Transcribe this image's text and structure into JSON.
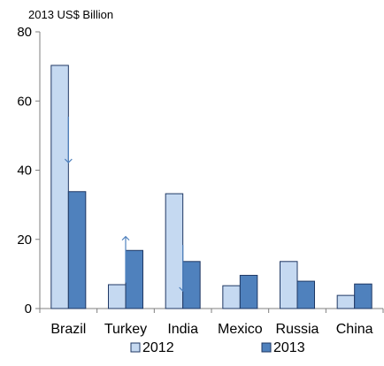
{
  "chart_data": {
    "type": "bar",
    "unit_label": "2013 US$ Billion",
    "categories": [
      "Brazil",
      "Turkey",
      "India",
      "Mexico",
      "Russia",
      "China"
    ],
    "series": [
      {
        "name": "2012",
        "values": [
          70.3,
          6.9,
          33.2,
          6.6,
          13.6,
          3.8
        ],
        "color": "#c5d9f1"
      },
      {
        "name": "2013",
        "values": [
          33.8,
          16.8,
          13.6,
          9.6,
          7.9,
          7.1
        ],
        "color": "#4f81bd"
      }
    ],
    "ylim": [
      0,
      80
    ],
    "yticks": [
      0,
      20,
      40,
      60,
      80
    ],
    "grid": false,
    "legend": "bottom",
    "annotations": [
      {
        "category": "Brazil",
        "direction": "down"
      },
      {
        "category": "Turkey",
        "direction": "up"
      },
      {
        "category": "India",
        "direction": "down"
      }
    ],
    "colors": {
      "axis": "#7f7f7f",
      "bar_border": "#1f3864",
      "arrow": "#4f81bd",
      "text": "#000000"
    }
  }
}
